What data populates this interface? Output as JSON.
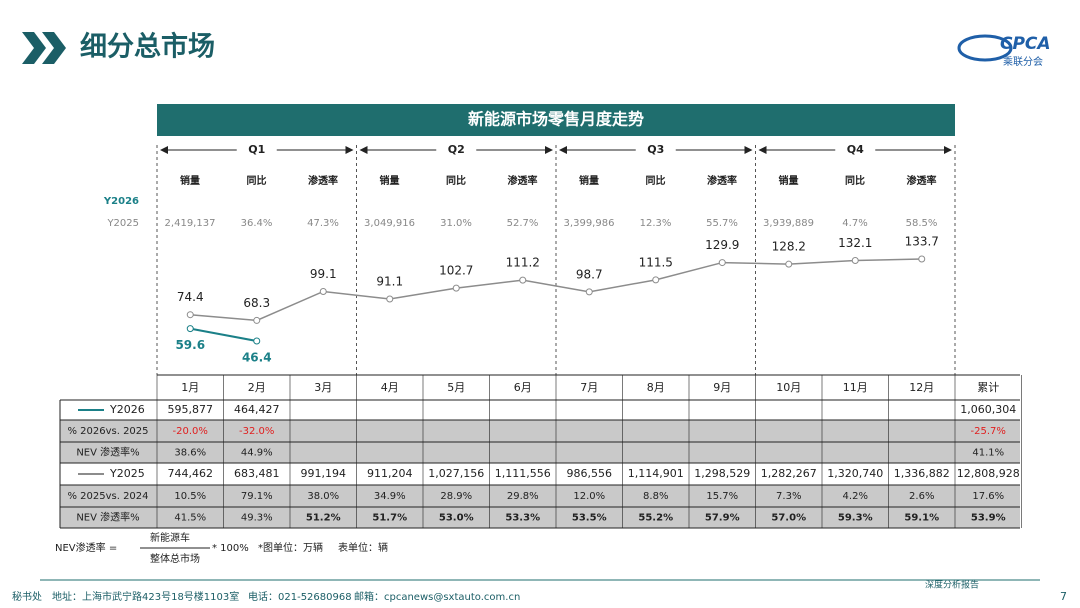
{
  "header": {
    "title": "细分总市场",
    "logo": "CPCA",
    "logo_sub": "乘联分会"
  },
  "chart_data": {
    "type": "line",
    "title": "新能源市场零售月度走势",
    "categories": [
      "1月",
      "2月",
      "3月",
      "4月",
      "5月",
      "6月",
      "7月",
      "8月",
      "9月",
      "10月",
      "11月",
      "12月"
    ],
    "series": [
      {
        "name": "Y2026",
        "color": "#1b8088",
        "values": [
          59.6,
          46.4,
          null,
          null,
          null,
          null,
          null,
          null,
          null,
          null,
          null,
          null
        ]
      },
      {
        "name": "Y2025",
        "color": "#8c8c8c",
        "values": [
          74.4,
          68.3,
          99.1,
          91.1,
          102.7,
          111.2,
          98.7,
          111.5,
          129.9,
          128.2,
          132.1,
          133.7
        ]
      }
    ]
  },
  "quarters": {
    "items": [
      {
        "label": "Q1",
        "headers": [
          "销量",
          "同比",
          "渗透率"
        ],
        "y2025": [
          "2,419,137",
          "36.4%",
          "47.3%"
        ]
      },
      {
        "label": "Q2",
        "headers": [
          "销量",
          "同比",
          "渗透率"
        ],
        "y2025": [
          "3,049,916",
          "31.0%",
          "52.7%"
        ]
      },
      {
        "label": "Q3",
        "headers": [
          "销量",
          "同比",
          "渗透率"
        ],
        "y2025": [
          "3,399,986",
          "12.3%",
          "55.7%"
        ]
      },
      {
        "label": "Q4",
        "headers": [
          "销量",
          "同比",
          "渗透率"
        ],
        "y2025": [
          "3,939,889",
          "4.7%",
          "58.5%"
        ]
      }
    ]
  },
  "table": {
    "total_header": "累计",
    "rows": [
      {
        "cells": [
          "595,877",
          "464,427",
          null,
          null,
          null,
          null,
          null,
          null,
          null,
          null,
          null,
          null,
          "1,060,304"
        ]
      },
      {
        "label": "% 2026vs. 2025",
        "cells": [
          "-20.0%",
          "-32.0%",
          null,
          null,
          null,
          null,
          null,
          null,
          null,
          null,
          null,
          null,
          "-25.7%"
        ]
      },
      {
        "label": "NEV 渗透率%",
        "cells": [
          "38.6%",
          "44.9%",
          null,
          null,
          null,
          null,
          null,
          null,
          null,
          null,
          null,
          null,
          "41.1%"
        ]
      },
      {
        "cells": [
          "744,462",
          "683,481",
          "991,194",
          "911,204",
          "1,027,156",
          "1,111,556",
          "986,556",
          "1,114,901",
          "1,298,529",
          "1,282,267",
          "1,320,740",
          "1,336,882",
          "12,808,928"
        ]
      },
      {
        "label": "% 2025vs. 2024",
        "cells": [
          "10.5%",
          "79.1%",
          "38.0%",
          "34.9%",
          "28.9%",
          "29.8%",
          "12.0%",
          "8.8%",
          "15.7%",
          "7.3%",
          "4.2%",
          "2.6%",
          "17.6%"
        ]
      },
      {
        "label": "NEV 渗透率%",
        "cells": [
          "41.5%",
          "49.3%",
          "51.2%",
          "51.7%",
          "53.0%",
          "53.3%",
          "53.5%",
          "55.2%",
          "57.9%",
          "57.0%",
          "59.3%",
          "59.1%",
          "53.9%"
        ]
      }
    ]
  },
  "formula": {
    "left": "NEV渗透率 =",
    "numerator": "新能源车",
    "denominator": "整体总市场",
    "right": "* 100%",
    "unit_chart": "*图单位：万辆",
    "unit_table": "表单位：辆"
  },
  "footer": {
    "office": "秘书处",
    "address": "地址：上海市武宁路423号18号楼1103室",
    "phone": "电话：021-52680968",
    "email": "邮箱：cpcanews@sxtauto.com.cn",
    "report": "深度分析报告",
    "page": "7"
  }
}
